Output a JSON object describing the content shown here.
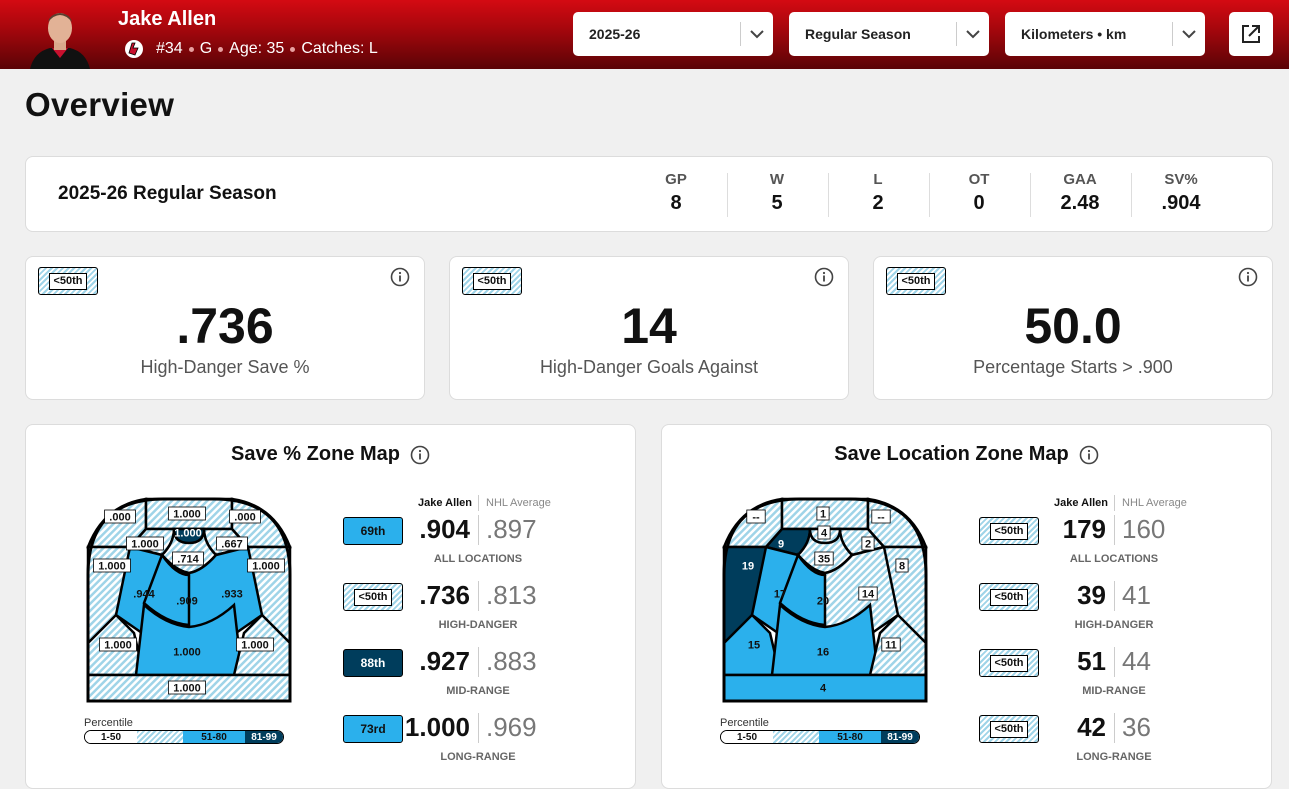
{
  "header": {
    "player_name": "Jake Allen",
    "number": "#34",
    "position": "G",
    "age": "Age: 35",
    "catches": "Catches: L",
    "season_select": "2025-26",
    "type_select": "Regular Season",
    "unit_select": "Kilometers • km"
  },
  "page_title": "Overview",
  "season_summary": {
    "title": "2025-26 Regular Season",
    "stats": [
      {
        "k": "GP",
        "v": "8"
      },
      {
        "k": "W",
        "v": "5"
      },
      {
        "k": "L",
        "v": "2"
      },
      {
        "k": "OT",
        "v": "0"
      },
      {
        "k": "GAA",
        "v": "2.48"
      },
      {
        "k": "SV%",
        "v": ".904"
      }
    ]
  },
  "kpis": [
    {
      "badge": "<50th",
      "value": ".736",
      "label": "High-Danger Save %"
    },
    {
      "badge": "<50th",
      "value": "14",
      "label": "High-Danger Goals Against"
    },
    {
      "badge": "<50th",
      "value": "50.0",
      "label": "Percentage Starts > .900"
    }
  ],
  "save_pct_map": {
    "title": "Save % Zone Map",
    "col_player": "Jake Allen",
    "col_avg": "NHL Average",
    "zones": {
      "top_left": ".000",
      "top_mid": "1.000",
      "top_right": ".000",
      "crease": "1.000",
      "left_post": "1.000",
      "slot": ".714",
      "right_post": ".667",
      "left_wide": "1.000",
      "right_wide": "1.000",
      "low_left": ".944",
      "low_mid": ".909",
      "low_right": ".933",
      "mid_left": "1.000",
      "mid": "1.000",
      "mid_right": "1.000",
      "point": "1.000"
    },
    "rows": [
      {
        "pct": "69th",
        "tone": "light",
        "value": ".904",
        "avg": ".897",
        "cap": "ALL LOCATIONS"
      },
      {
        "pct": "<50th",
        "tone": "hatch",
        "value": ".736",
        "avg": ".813",
        "cap": "HIGH-DANGER"
      },
      {
        "pct": "88th",
        "tone": "dark",
        "value": ".927",
        "avg": ".883",
        "cap": "MID-RANGE"
      },
      {
        "pct": "73rd",
        "tone": "light",
        "value": "1.000",
        "avg": ".969",
        "cap": "LONG-RANGE"
      }
    ]
  },
  "save_loc_map": {
    "title": "Save Location Zone Map",
    "col_player": "Jake Allen",
    "col_avg": "NHL Average",
    "zones": {
      "top_left": "--",
      "top_mid": "1",
      "top_right": "--",
      "crease": "4",
      "left_post": "9",
      "slot": "35",
      "right_post": "2",
      "left_wide": "19",
      "right_wide": "8",
      "low_left": "17",
      "low_mid": "20",
      "low_right": "14",
      "mid_left": "15",
      "mid": "16",
      "mid_right": "11",
      "point": "4"
    },
    "rows": [
      {
        "pct": "<50th",
        "tone": "hatch",
        "value": "179",
        "avg": "160",
        "cap": "ALL LOCATIONS"
      },
      {
        "pct": "<50th",
        "tone": "hatch",
        "value": "39",
        "avg": "41",
        "cap": "HIGH-DANGER"
      },
      {
        "pct": "<50th",
        "tone": "hatch",
        "value": "51",
        "avg": "44",
        "cap": "MID-RANGE"
      },
      {
        "pct": "<50th",
        "tone": "hatch",
        "value": "42",
        "avg": "36",
        "cap": "LONG-RANGE"
      }
    ]
  },
  "legend": {
    "title": "Percentile",
    "seg1": "1-50",
    "seg2": "51-80",
    "seg3": "81-99"
  },
  "colors": {
    "light": "#2bb0ec",
    "dark": "#003d5c",
    "hatch": "#9fd4e8",
    "header_red": "#c8102e"
  }
}
